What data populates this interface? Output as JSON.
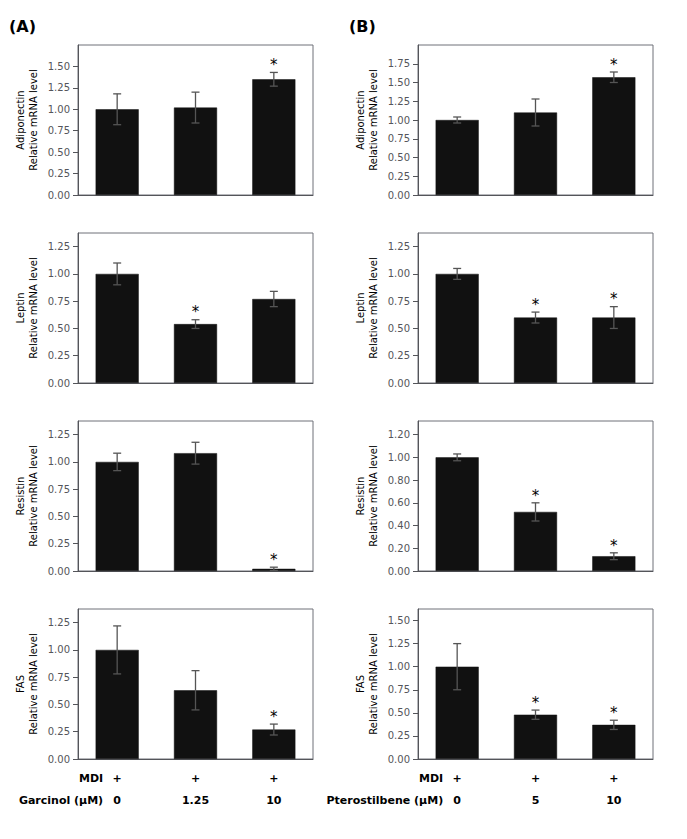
{
  "chart_data": [
    {
      "type": "bar",
      "title": "(A)",
      "ylabel": "Adiponectin\nRelative mRNA level",
      "categories": [
        null,
        null,
        null
      ],
      "values": [
        1.0,
        1.02,
        1.35
      ],
      "errors": [
        0.18,
        0.18,
        0.08
      ],
      "significant": [
        false,
        false,
        true
      ],
      "annotation": "*",
      "color": "#111111",
      "ylim": [
        0,
        1.75
      ],
      "yticks": [
        {
          "value": 0,
          "label": "0.00"
        },
        0.25,
        {
          "value": 0.5,
          "label": "0.50"
        },
        0.75,
        {
          "value": 1,
          "label": "1.00"
        },
        1.25,
        {
          "value": 1.5,
          "label": "1.50"
        }
      ],
      "grid": false
    },
    {
      "type": "bar",
      "ylabel": "Leptin\nRelative mRNA level",
      "categories": [
        null,
        null,
        null
      ],
      "values": [
        1.0,
        0.54,
        0.77
      ],
      "errors": [
        0.1,
        0.04,
        0.07
      ],
      "significant": [
        false,
        true,
        false
      ],
      "annotation": "*",
      "color": "#111111",
      "ylim": [
        0,
        1.375
      ],
      "yticks": [
        {
          "value": 0,
          "label": "0.00"
        },
        0.25,
        {
          "value": 0.5,
          "label": "0.50"
        },
        0.75,
        {
          "value": 1,
          "label": "1.00"
        },
        1.25
      ],
      "grid": false
    },
    {
      "type": "bar",
      "ylabel": "Resistin\nRelative mRNA level",
      "categories": [
        null,
        null,
        null
      ],
      "values": [
        1.0,
        1.08,
        0.02
      ],
      "errors": [
        0.08,
        0.1,
        0.015
      ],
      "significant": [
        false,
        false,
        true
      ],
      "annotation": "*",
      "color": "#111111",
      "ylim": [
        0,
        1.375
      ],
      "yticks": [
        {
          "value": 0,
          "label": "0.00"
        },
        0.25,
        {
          "value": 0.5,
          "label": "0.50"
        },
        0.75,
        {
          "value": 1,
          "label": "1.00"
        },
        1.25
      ],
      "grid": false
    },
    {
      "type": "bar",
      "ylabel": "FAS\nRelative mRNA level",
      "categories": [
        "0",
        "1.25",
        "10"
      ],
      "xlabel": "Garcinol (μM)",
      "treatment": {
        "label": "MDI",
        "values": [
          "+",
          "+",
          "+"
        ]
      },
      "values": [
        1.0,
        0.63,
        0.27
      ],
      "errors": [
        0.22,
        0.18,
        0.05
      ],
      "significant": [
        false,
        false,
        true
      ],
      "annotation": "*",
      "color": "#111111",
      "ylim": [
        0,
        1.375
      ],
      "yticks": [
        {
          "value": 0,
          "label": "0.00"
        },
        0.25,
        {
          "value": 0.5,
          "label": "0.50"
        },
        0.75,
        {
          "value": 1,
          "label": "1.00"
        },
        1.25
      ],
      "grid": false
    },
    {
      "type": "bar",
      "title": "(B)",
      "ylabel": "Adiponectin\nRelative mRNA level",
      "categories": [
        null,
        null,
        null
      ],
      "values": [
        1.0,
        1.1,
        1.57
      ],
      "errors": [
        0.04,
        0.18,
        0.07
      ],
      "significant": [
        false,
        false,
        true
      ],
      "annotation": "*",
      "color": "#111111",
      "ylim": [
        0,
        2.0
      ],
      "yticks": [
        {
          "value": 0,
          "label": "0.00"
        },
        0.25,
        {
          "value": 0.5,
          "label": "0.50"
        },
        0.75,
        {
          "value": 1,
          "label": "1.00"
        },
        1.25,
        {
          "value": 1.5,
          "label": "1.50"
        },
        1.75
      ],
      "grid": false
    },
    {
      "type": "bar",
      "ylabel": "Leptin\nRelative mRNA level",
      "categories": [
        null,
        null,
        null
      ],
      "values": [
        1.0,
        0.6,
        0.6
      ],
      "errors": [
        0.05,
        0.05,
        0.1
      ],
      "significant": [
        false,
        true,
        true
      ],
      "annotation": "*",
      "color": "#111111",
      "ylim": [
        0,
        1.375
      ],
      "yticks": [
        {
          "value": 0,
          "label": "0.00"
        },
        0.25,
        {
          "value": 0.5,
          "label": "0.50"
        },
        0.75,
        {
          "value": 1,
          "label": "1.00"
        },
        1.25
      ],
      "grid": false
    },
    {
      "type": "bar",
      "ylabel": "Resistin\nRelative mRNA level",
      "categories": [
        null,
        null,
        null
      ],
      "values": [
        1.0,
        0.52,
        0.13
      ],
      "errors": [
        0.03,
        0.08,
        0.03
      ],
      "significant": [
        false,
        true,
        true
      ],
      "annotation": "*",
      "color": "#111111",
      "ylim": [
        0,
        1.32
      ],
      "yticks": [
        {
          "value": 0,
          "label": "0.00"
        },
        {
          "value": 0.2,
          "label": "0.20"
        },
        {
          "value": 0.4,
          "label": "0.40"
        },
        {
          "value": 0.6,
          "label": "0.60"
        },
        {
          "value": 0.8,
          "label": "0.80"
        },
        {
          "value": 1,
          "label": "1.00"
        },
        {
          "value": 1.2,
          "label": "1.20"
        }
      ],
      "grid": false
    },
    {
      "type": "bar",
      "ylabel": "FAS\nRelative mRNA level",
      "categories": [
        "0",
        "5",
        "10"
      ],
      "xlabel": "Pterostilbene (μM)",
      "treatment": {
        "label": "MDI",
        "values": [
          "+",
          "+",
          "+"
        ]
      },
      "values": [
        1.0,
        0.48,
        0.37
      ],
      "errors": [
        0.25,
        0.05,
        0.05
      ],
      "significant": [
        false,
        true,
        true
      ],
      "annotation": "*",
      "color": "#111111",
      "ylim": [
        0,
        1.625
      ],
      "yticks": [
        {
          "value": 0,
          "label": "0.00"
        },
        0.25,
        {
          "value": 0.5,
          "label": "0.50"
        },
        0.75,
        {
          "value": 1,
          "label": "1.00"
        },
        1.25,
        {
          "value": 1.5,
          "label": "1.50"
        }
      ],
      "grid": false
    }
  ]
}
